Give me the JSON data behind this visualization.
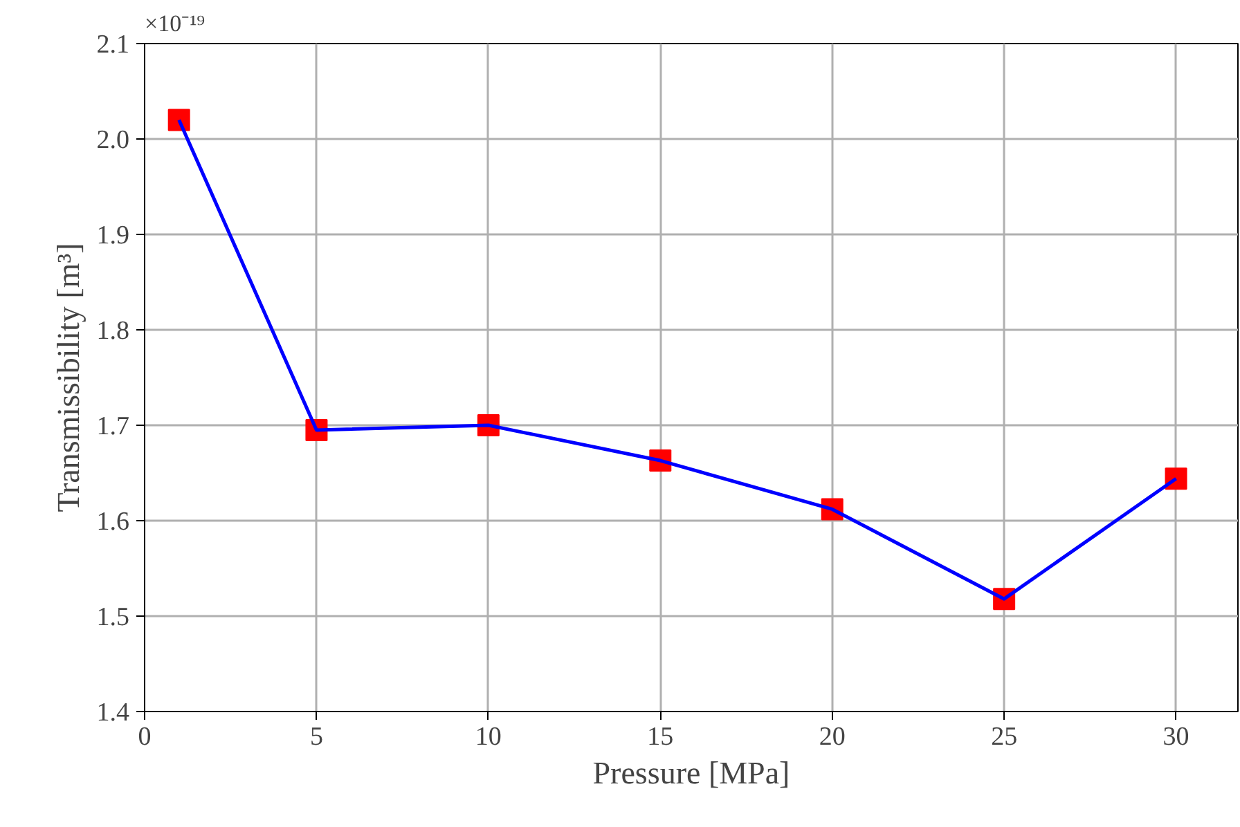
{
  "chart_data": {
    "type": "line",
    "xlabel": "Pressure [MPa]",
    "ylabel": "Transmissibility [m³]",
    "annotations": [
      "×10⁻¹⁹"
    ],
    "x": [
      1,
      5,
      10,
      15,
      20,
      25,
      30
    ],
    "series": [
      {
        "color": "#0000ff",
        "colors": [
          "#ff0000",
          "#ff0000",
          "#ff0000",
          "#ff0000",
          "#ff0000",
          "#ff0000",
          "#ff0000"
        ],
        "values": [
          2.02,
          1.695,
          1.7,
          1.663,
          1.612,
          1.518,
          1.644
        ]
      }
    ],
    "marker": "square",
    "line_style": "solid",
    "grid": true,
    "legend": false,
    "xlim": [
      0,
      31.8
    ],
    "ylim": [
      1.4,
      2.1
    ],
    "xticks": [
      0,
      5,
      10,
      15,
      20,
      25,
      30
    ],
    "yticks": [
      1.4,
      1.5,
      1.6,
      1.7,
      1.8,
      1.9,
      {
        "value": 2.0,
        "label": "2.0"
      },
      2.1
    ]
  }
}
